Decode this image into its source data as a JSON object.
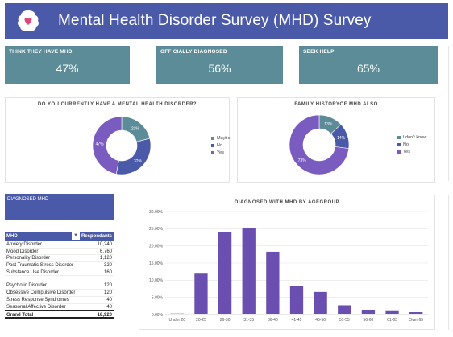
{
  "header": {
    "title": "Mental Health Disorder Survey (MHD) Survey"
  },
  "kpis": [
    {
      "label": "THINK THEY HAVE MHD",
      "value": "47%"
    },
    {
      "label": "OFFICIALLY DIAGNOSED",
      "value": "56%"
    },
    {
      "label": "SEEK HELP",
      "value": "65%"
    }
  ],
  "donut1": {
    "title": "DO YOU CURRENTLY HAVE A MENTAL HEALTH DISORDER?",
    "legend": [
      "Maybe",
      "No",
      "Yes"
    ],
    "colors": [
      "#5b8c98",
      "#4a5aa8",
      "#7a5bbf"
    ]
  },
  "donut2": {
    "title": "FAMILY HISTORYOF MHD ALSO",
    "legend": [
      "I don't know",
      "No",
      "Yes"
    ],
    "colors": [
      "#5b8c98",
      "#4a5aa8",
      "#7a5bbf"
    ]
  },
  "diagnosed": {
    "label": "DIAGNOSED MHD",
    "col_mhd": "MHD",
    "col_resp": "Respondants",
    "filter_icon": "filter-icon",
    "rows_a": [
      {
        "name": "Anxiety Disorder",
        "value": "10,240"
      },
      {
        "name": "Mood Disorder",
        "value": "6,760"
      },
      {
        "name": "Personality Disorder",
        "value": "1,120"
      },
      {
        "name": "Post Traumatic Stress Disorder",
        "value": "320"
      },
      {
        "name": "Substance Use Disorder",
        "value": "160"
      }
    ],
    "rows_b": [
      {
        "name": "Psychotic Disorder",
        "value": "120"
      },
      {
        "name": "Obsessive Compulsive Disorder",
        "value": "120"
      },
      {
        "name": "Stress Response Syndromes",
        "value": "40"
      },
      {
        "name": "Seasonal Affective Disorder",
        "value": "40"
      }
    ],
    "total_label": "Grand Total",
    "total_value": "18,920"
  },
  "chart_data": [
    {
      "type": "pie",
      "title": "DO YOU CURRENTLY HAVE A MENTAL HEALTH DISORDER?",
      "categories": [
        "Maybe",
        "No",
        "Yes"
      ],
      "values": [
        21,
        32,
        47
      ],
      "value_labels": [
        "21%",
        "32%",
        "47%"
      ],
      "donut": true
    },
    {
      "type": "pie",
      "title": "FAMILY HISTORYOF MHD ALSO",
      "categories": [
        "I don't know",
        "No",
        "Yes"
      ],
      "values": [
        13,
        14,
        73
      ],
      "value_labels": [
        "13%",
        "14%",
        "73%"
      ],
      "donut": true
    },
    {
      "type": "bar",
      "title": "DIAGNOSED WITH MHD BY AGEGROUP",
      "categories": [
        "Under 20",
        "20-25",
        "26-30",
        "31-35",
        "36-40",
        "41-45",
        "46-50",
        "51-55",
        "56-60",
        "61-65",
        "Over 65"
      ],
      "values": [
        0.3,
        11.9,
        24.0,
        25.3,
        18.3,
        8.3,
        6.6,
        2.7,
        1.2,
        1.0,
        0.7
      ],
      "ylim": [
        0,
        30
      ],
      "yticks": [
        "0.00%",
        "5.00%",
        "10.00%",
        "15.00%",
        "20.00%",
        "25.00%",
        "30.00%"
      ],
      "color": "#6a4fb0",
      "grid": true
    }
  ]
}
